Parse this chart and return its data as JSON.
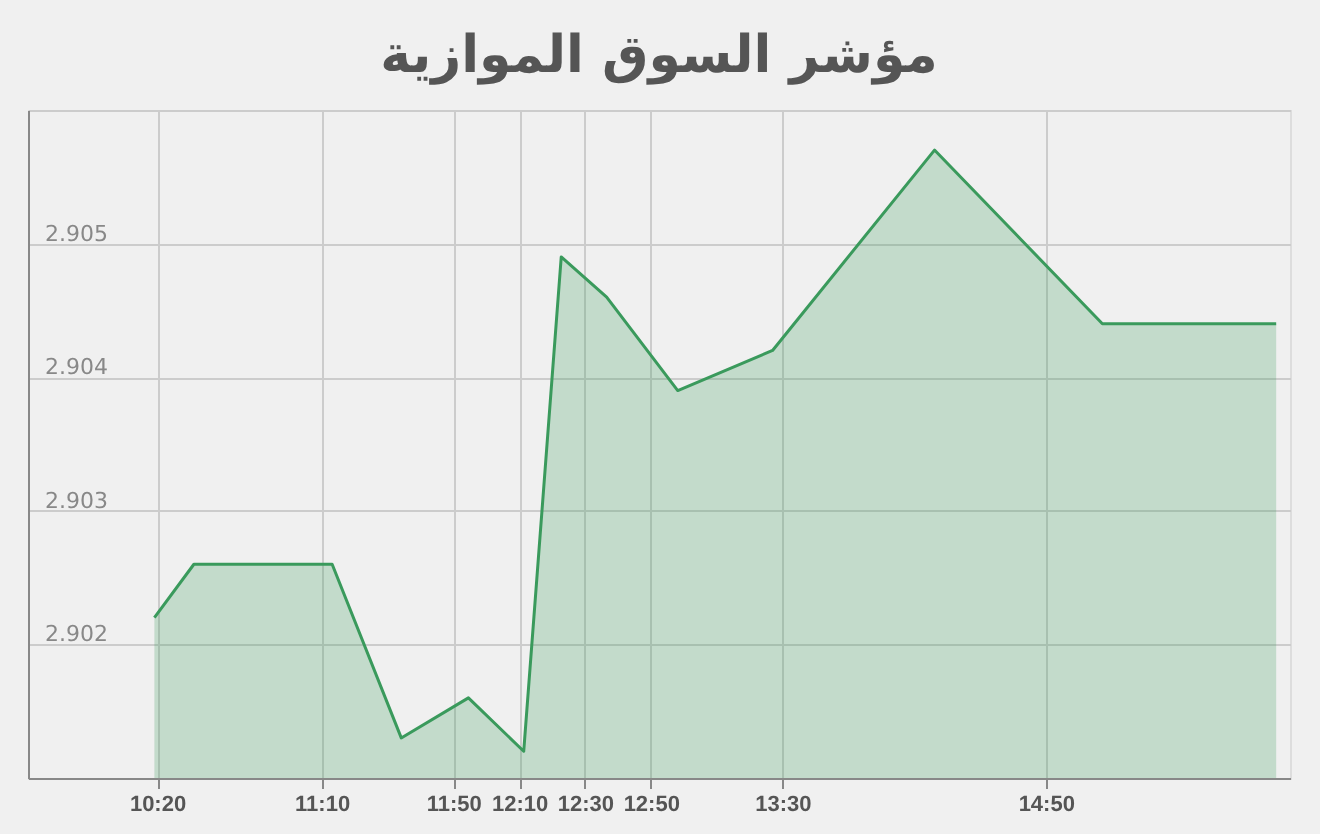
{
  "chart_data": {
    "type": "area",
    "title": "مؤشر السوق الموازية",
    "x": [
      10.32,
      10.52,
      11.22,
      11.57,
      11.91,
      12.19,
      12.38,
      12.61,
      12.97,
      13.45,
      14.27,
      15.12,
      16.0
    ],
    "series": [
      {
        "color": "#3a9a5c",
        "values": [
          2.9022,
          2.9026,
          2.9026,
          2.9013,
          2.9016,
          2.9012,
          2.9049,
          2.9046,
          2.9039,
          2.9042,
          2.9057,
          2.9044,
          2.9044
        ]
      }
    ],
    "xlim": [
      9.68,
      16.07
    ],
    "xticks": [
      {
        "value": 10.3333,
        "label": "10:20"
      },
      {
        "value": 11.1667,
        "label": "11:10"
      },
      {
        "value": 11.8333,
        "label": "11:50"
      },
      {
        "value": 12.1667,
        "label": "12:10"
      },
      {
        "value": 12.5,
        "label": "12:30"
      },
      {
        "value": 12.8333,
        "label": "12:50"
      },
      {
        "value": 13.5,
        "label": "13:30"
      },
      {
        "value": 14.8333,
        "label": "14:50"
      }
    ],
    "ylim": [
      2.901,
      2.906
    ],
    "yticks": [
      {
        "value": 2.901,
        "label": null
      },
      2.902,
      2.903,
      2.904,
      2.905,
      {
        "value": 2.906,
        "label": null
      }
    ],
    "grid": true
  }
}
